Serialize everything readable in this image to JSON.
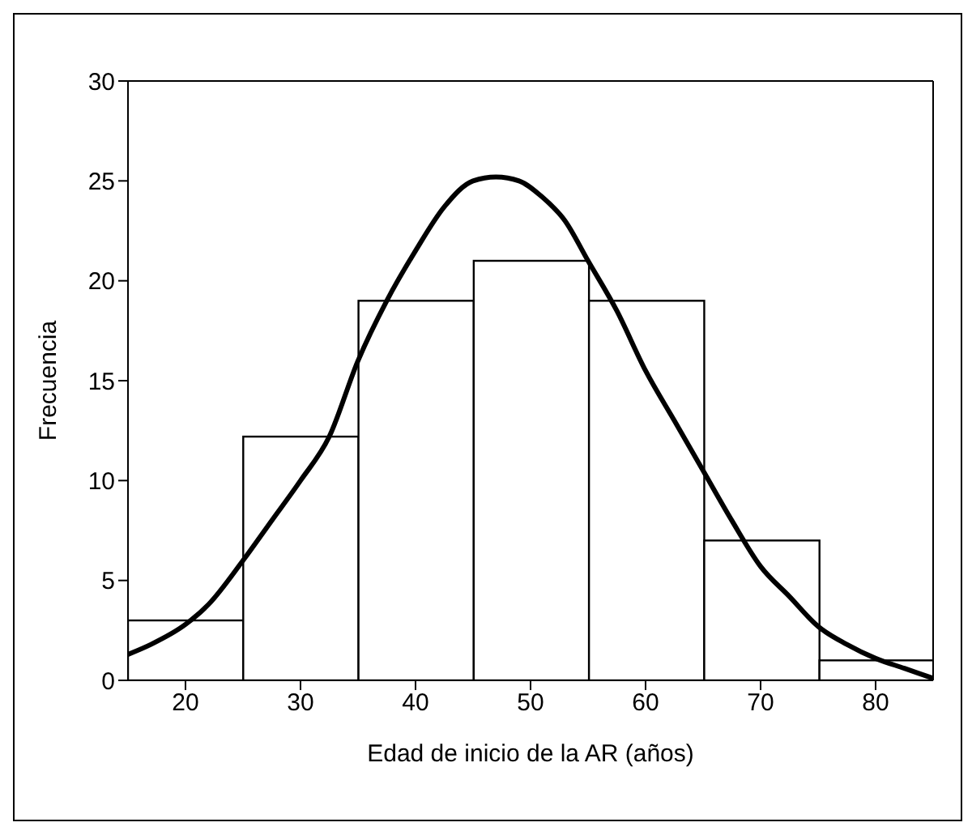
{
  "chart_data": {
    "type": "histogram",
    "xlabel": "Edad de inicio de la AR (años)",
    "ylabel": "Frecuencia",
    "bins": [
      15,
      25,
      35,
      45,
      55,
      65,
      75,
      85
    ],
    "values": [
      3,
      12.2,
      19,
      21,
      19,
      7,
      1
    ],
    "color": "#ffffff",
    "series": [
      {
        "type": "line",
        "color": "#000000",
        "x": [
          15,
          17,
          20,
          22,
          25,
          27.5,
          30,
          32.5,
          35,
          37.5,
          40,
          42.5,
          45,
          47,
          49,
          51,
          53,
          55,
          57.5,
          60,
          62.5,
          65,
          67.5,
          70,
          72.5,
          75,
          77.5,
          80,
          82.5,
          85
        ],
        "values": [
          1.3,
          1.8,
          2.8,
          3.8,
          6,
          8,
          10,
          12.2,
          16,
          19,
          21.5,
          23.7,
          25,
          25.2,
          25,
          24.2,
          23,
          21,
          18.5,
          15.5,
          13,
          10.5,
          8,
          5.7,
          4.2,
          2.7,
          1.8,
          1.1,
          0.6,
          0.1
        ]
      }
    ],
    "xlim": [
      15,
      85
    ],
    "xticks": [
      20,
      30,
      40,
      50,
      60,
      70,
      80
    ],
    "ylim": [
      0,
      30
    ],
    "yticks": [
      0,
      5,
      10,
      15,
      20,
      25,
      30
    ],
    "grid": false,
    "legend": false
  }
}
